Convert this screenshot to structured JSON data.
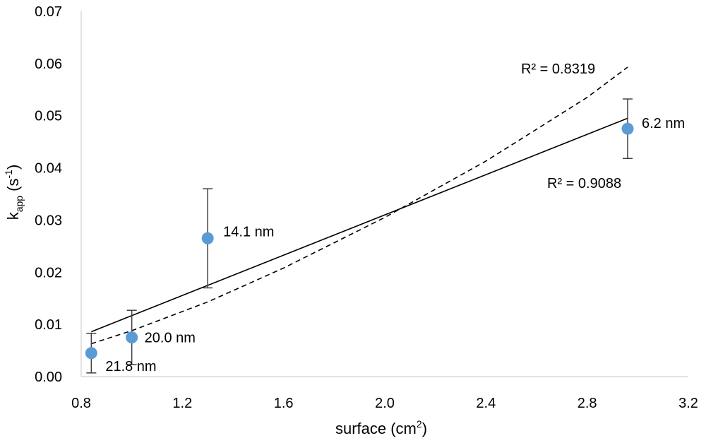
{
  "chart_data": {
    "type": "scatter",
    "title": "",
    "xlabel": "surface (cm",
    "xlabel_sup": "2",
    "xlabel_tail": ")",
    "ylabel": "k",
    "ylabel_sub": "app",
    "ylabel_mid": " (s",
    "ylabel_sup": "-1",
    "ylabel_tail": ")",
    "xlim": [
      0.8,
      3.2
    ],
    "ylim": [
      0.0,
      0.07
    ],
    "x_ticks": [
      "0.8",
      "1.2",
      "1.6",
      "2.0",
      "2.4",
      "2.8",
      "3.2"
    ],
    "y_ticks": [
      "0.00",
      "0.01",
      "0.02",
      "0.03",
      "0.04",
      "0.05",
      "0.06",
      "0.07"
    ],
    "grid": false,
    "marker_color": "#5b9bd5",
    "line_color": "#000000",
    "points": [
      {
        "x": 0.84,
        "y": 0.0045,
        "err_low": 0.0007,
        "err_high": 0.0083,
        "label": "21.8 nm"
      },
      {
        "x": 1.0,
        "y": 0.0075,
        "err_low": 0.0023,
        "err_high": 0.0127,
        "label": "20.0 nm"
      },
      {
        "x": 1.3,
        "y": 0.0265,
        "err_low": 0.017,
        "err_high": 0.036,
        "label": "14.1 nm"
      },
      {
        "x": 2.96,
        "y": 0.0475,
        "err_low": 0.0418,
        "err_high": 0.0532,
        "label": "6.2 nm"
      }
    ],
    "trendlines": [
      {
        "kind": "linear",
        "style": "solid",
        "x0": 0.84,
        "y0": 0.0086,
        "x1": 2.96,
        "y1": 0.0495,
        "r2_label": "R² = 0.9088"
      },
      {
        "kind": "curve",
        "style": "dashed",
        "samples": [
          [
            0.84,
            0.0063
          ],
          [
            1.0,
            0.0088
          ],
          [
            1.3,
            0.0143
          ],
          [
            1.6,
            0.0208
          ],
          [
            2.0,
            0.0305
          ],
          [
            2.4,
            0.0413
          ],
          [
            2.8,
            0.0535
          ],
          [
            2.96,
            0.0593
          ]
        ],
        "r2_label": "R² = 0.8319"
      }
    ]
  }
}
